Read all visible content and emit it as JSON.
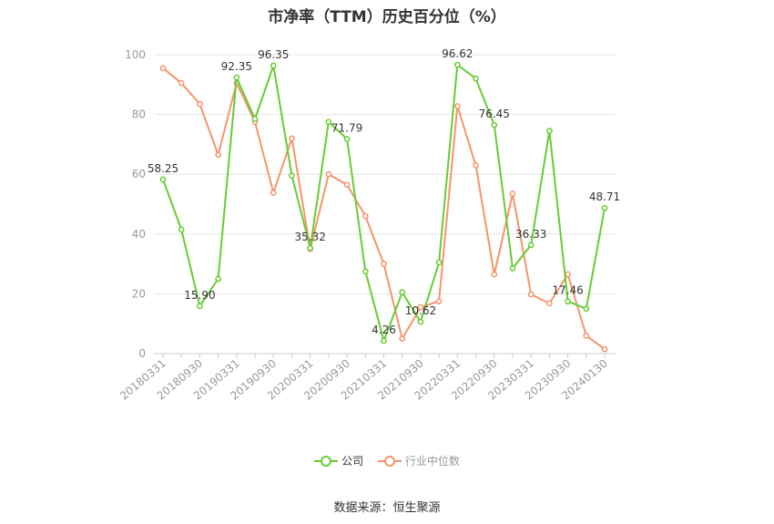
{
  "chart_data": {
    "type": "line",
    "title": "市净率（TTM）历史百分位（%）",
    "source": "数据来源：恒生聚源",
    "ylim": [
      0,
      100
    ],
    "yticks": [
      0,
      20,
      40,
      60,
      80,
      100
    ],
    "xticklabels": [
      "20180331",
      "20180930",
      "20190331",
      "20190930",
      "20200331",
      "20200930",
      "20210331",
      "20210930",
      "20220331",
      "20220930",
      "20230331",
      "20230930",
      "20240130"
    ],
    "categories": [
      "20180331",
      "20180630",
      "20180930",
      "20181231",
      "20190331",
      "20190630",
      "20190930",
      "20191231",
      "20200331",
      "20200630",
      "20200930",
      "20201231",
      "20210331",
      "20210630",
      "20210930",
      "20211231",
      "20220331",
      "20220630",
      "20220930",
      "20221231",
      "20230331",
      "20230630",
      "20230930",
      "20231231",
      "20240130"
    ],
    "series": [
      {
        "name": "公司",
        "color": "#66cc33",
        "values": [
          58.25,
          41.5,
          15.9,
          25.0,
          92.35,
          78.5,
          96.35,
          59.5,
          35.32,
          77.5,
          71.79,
          27.5,
          4.26,
          20.5,
          10.62,
          30.5,
          96.62,
          92.0,
          76.45,
          28.5,
          36.33,
          74.5,
          17.46,
          15.0,
          48.71
        ],
        "labels": {
          "0": "58.25",
          "2": "15.90",
          "4": "92.35",
          "6": "96.35",
          "8": "35.32",
          "10": "71.79",
          "12": "4.26",
          "14": "10.62",
          "16": "96.62",
          "18": "76.45",
          "20": "36.33",
          "22": "17.46",
          "24": "48.71"
        }
      },
      {
        "name": "行业中位数",
        "color": "#f4956a",
        "values": [
          95.5,
          90.5,
          83.5,
          66.5,
          90.5,
          77.5,
          53.8,
          72.0,
          35.0,
          60.0,
          56.5,
          46.0,
          30.0,
          5.0,
          15.5,
          17.5,
          82.8,
          63.0,
          26.5,
          53.5,
          19.8,
          16.8,
          26.5,
          6.0,
          1.5
        ]
      }
    ],
    "legend_position": "bottom",
    "grid": true
  }
}
